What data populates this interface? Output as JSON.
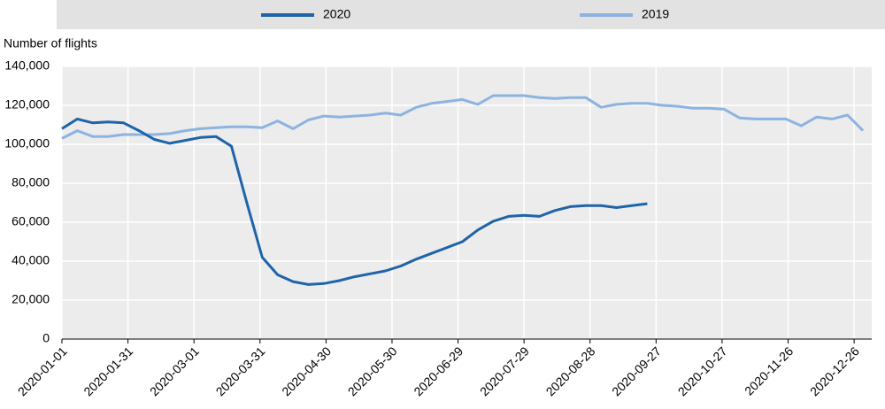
{
  "chart_data": {
    "type": "line",
    "y_axis_label": "Number of flights",
    "x": [
      "2020-01-01",
      "2020-01-08",
      "2020-01-15",
      "2020-01-22",
      "2020-01-29",
      "2020-02-05",
      "2020-02-12",
      "2020-02-19",
      "2020-02-26",
      "2020-03-04",
      "2020-03-11",
      "2020-03-18",
      "2020-03-25",
      "2020-04-01",
      "2020-04-08",
      "2020-04-15",
      "2020-04-22",
      "2020-04-29",
      "2020-05-06",
      "2020-05-13",
      "2020-05-20",
      "2020-05-27",
      "2020-06-03",
      "2020-06-10",
      "2020-06-17",
      "2020-06-24",
      "2020-07-01",
      "2020-07-08",
      "2020-07-15",
      "2020-07-22",
      "2020-07-29",
      "2020-08-05",
      "2020-08-12",
      "2020-08-19",
      "2020-08-26",
      "2020-09-02",
      "2020-09-09",
      "2020-09-16",
      "2020-09-23",
      "2020-09-30",
      "2020-10-07",
      "2020-10-14",
      "2020-10-21",
      "2020-10-28",
      "2020-11-04",
      "2020-11-11",
      "2020-11-18",
      "2020-11-25",
      "2020-12-02",
      "2020-12-09",
      "2020-12-16",
      "2020-12-23",
      "2020-12-30"
    ],
    "series": [
      {
        "name": "2020",
        "color": "#1f64a8",
        "values": [
          108000,
          113000,
          111000,
          111500,
          111000,
          107000,
          102500,
          100500,
          102000,
          103500,
          104000,
          99000,
          70000,
          42000,
          33000,
          29500,
          28000,
          28500,
          30000,
          32000,
          33500,
          35000,
          37500,
          41000,
          44000,
          47000,
          50000,
          56000,
          60500,
          63000,
          63500,
          63000,
          66000,
          68000,
          68500,
          68500,
          67500,
          68500,
          69500,
          null,
          null,
          null,
          null,
          null,
          null,
          null,
          null,
          null,
          null,
          null,
          null,
          null,
          null
        ]
      },
      {
        "name": "2019",
        "color": "#8db3e0",
        "values": [
          103000,
          107000,
          104000,
          104000,
          105000,
          105000,
          105000,
          105500,
          107000,
          108000,
          108500,
          109000,
          109000,
          108500,
          112000,
          108000,
          112500,
          114500,
          114000,
          114500,
          115000,
          116000,
          115000,
          119000,
          121000,
          122000,
          123000,
          120500,
          125000,
          125000,
          125000,
          124000,
          123500,
          124000,
          124000,
          119000,
          120500,
          121000,
          121000,
          120000,
          119500,
          118500,
          118500,
          118000,
          113500,
          113000,
          113000,
          113000,
          109500,
          114000,
          113000,
          115000,
          107000
        ]
      }
    ],
    "xlim": [
      "2020-01-01",
      "2021-01-03"
    ],
    "xticks": [
      "2020-01-01",
      "2020-01-31",
      "2020-03-01",
      "2020-03-31",
      "2020-04-30",
      "2020-05-30",
      "2020-06-29",
      "2020-07-29",
      "2020-08-28",
      "2020-09-27",
      "2020-10-27",
      "2020-11-26",
      "2020-12-26"
    ],
    "ylim": [
      0,
      140000
    ],
    "yticks": [
      0,
      {
        "value": 20000,
        "label": "20,000"
      },
      {
        "value": 40000,
        "label": "40,000"
      },
      {
        "value": 60000,
        "label": "60,000"
      },
      {
        "value": 80000,
        "label": "80,000"
      },
      {
        "value": 100000,
        "label": "100,000"
      },
      {
        "value": 120000,
        "label": "120,000"
      },
      {
        "value": 140000,
        "label": "140,000"
      }
    ],
    "grid": true
  }
}
